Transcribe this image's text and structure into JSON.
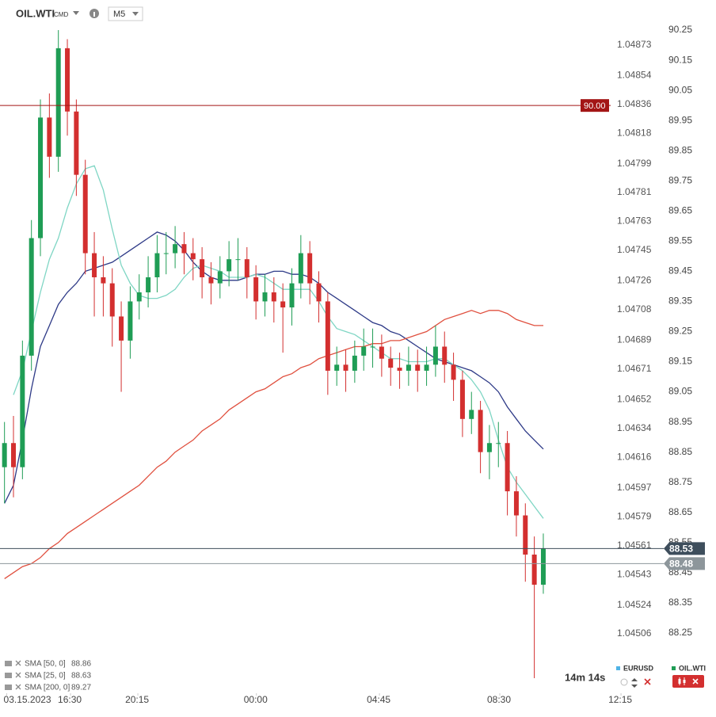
{
  "toolbar": {
    "symbol": "OIL.WTI",
    "asset_class": "CMD",
    "timeframe": "M5"
  },
  "chart_data": {
    "type": "candlestick",
    "up_color": "#1f9d55",
    "down_color": "#d32f2f",
    "open": [
      88.8,
      88.88,
      88.8,
      89.17,
      89.56,
      89.96,
      89.83,
      90.19,
      89.98,
      89.77,
      89.51,
      89.43,
      89.41,
      89.3,
      89.22,
      89.35,
      89.38,
      89.43,
      89.51,
      89.51,
      89.54,
      89.51,
      89.49,
      89.43,
      89.41,
      89.45,
      89.49,
      89.49,
      89.43,
      89.35,
      89.38,
      89.35,
      89.33,
      89.41,
      89.51,
      89.41,
      89.35,
      89.12,
      89.14,
      89.12,
      89.17,
      89.2,
      89.2,
      89.16,
      89.13,
      89.12,
      89.14,
      89.12,
      89.14,
      89.2,
      89.14,
      89.09,
      88.96,
      88.99,
      88.85,
      88.88,
      88.88,
      88.72,
      88.64,
      88.51,
      88.41
    ],
    "high": [
      88.95,
      88.97,
      89.22,
      89.62,
      90.02,
      90.04,
      90.25,
      90.22,
      90.02,
      89.82,
      89.58,
      89.5,
      89.46,
      89.35,
      89.4,
      89.44,
      89.5,
      89.57,
      89.58,
      89.6,
      89.58,
      89.56,
      89.53,
      89.48,
      89.5,
      89.55,
      89.56,
      89.53,
      89.47,
      89.44,
      89.43,
      89.41,
      89.46,
      89.57,
      89.55,
      89.45,
      89.38,
      89.2,
      89.19,
      89.22,
      89.26,
      89.26,
      89.24,
      89.2,
      89.18,
      89.2,
      89.19,
      89.2,
      89.27,
      89.25,
      89.18,
      89.12,
      89.05,
      89.02,
      88.94,
      88.95,
      88.92,
      88.77,
      88.68,
      88.57,
      88.58
    ],
    "low": [
      88.68,
      88.7,
      88.76,
      89.12,
      89.5,
      89.76,
      89.78,
      89.9,
      89.7,
      89.44,
      89.3,
      89.3,
      89.2,
      89.05,
      89.16,
      89.29,
      89.33,
      89.38,
      89.44,
      89.46,
      89.44,
      89.42,
      89.36,
      89.34,
      89.36,
      89.4,
      89.42,
      89.36,
      89.29,
      89.3,
      89.28,
      89.18,
      89.27,
      89.36,
      89.34,
      89.28,
      89.04,
      89.07,
      89.05,
      89.08,
      89.12,
      89.13,
      89.1,
      89.07,
      89.06,
      89.07,
      89.05,
      89.07,
      89.1,
      89.08,
      89.02,
      88.9,
      88.91,
      88.78,
      88.76,
      88.8,
      88.64,
      88.57,
      88.42,
      88.1,
      88.38
    ],
    "close": [
      88.88,
      88.8,
      89.17,
      89.56,
      89.96,
      89.83,
      90.19,
      89.98,
      89.77,
      89.51,
      89.43,
      89.41,
      89.3,
      89.22,
      89.35,
      89.38,
      89.43,
      89.51,
      89.51,
      89.54,
      89.51,
      89.49,
      89.43,
      89.41,
      89.45,
      89.49,
      89.49,
      89.43,
      89.35,
      89.38,
      89.35,
      89.33,
      89.41,
      89.51,
      89.41,
      89.35,
      89.12,
      89.14,
      89.12,
      89.17,
      89.2,
      89.2,
      89.16,
      89.13,
      89.12,
      89.14,
      89.12,
      89.14,
      89.2,
      89.14,
      89.09,
      88.96,
      88.99,
      88.85,
      88.88,
      88.88,
      88.72,
      88.64,
      88.51,
      88.41,
      88.53
    ],
    "series": [
      {
        "name": "SMA [50, 0]",
        "color": "#2e3a87",
        "values": [
          88.68,
          88.74,
          88.89,
          89.06,
          89.2,
          89.27,
          89.34,
          89.38,
          89.41,
          89.45,
          89.46,
          89.47,
          89.48,
          89.5,
          89.52,
          89.54,
          89.56,
          89.58,
          89.57,
          89.55,
          89.52,
          89.48,
          89.45,
          89.43,
          89.42,
          89.42,
          89.42,
          89.43,
          89.44,
          89.44,
          89.45,
          89.45,
          89.44,
          89.44,
          89.43,
          89.41,
          89.38,
          89.36,
          89.34,
          89.32,
          89.3,
          89.28,
          89.27,
          89.25,
          89.24,
          89.22,
          89.2,
          89.18,
          89.16,
          89.15,
          89.14,
          89.13,
          89.12,
          89.1,
          89.08,
          89.05,
          89.0,
          88.96,
          88.92,
          88.89,
          88.86
        ]
      },
      {
        "name": "SMA [25, 0]",
        "color": "#7fd6c4",
        "values": [
          null,
          89.04,
          89.12,
          89.25,
          89.38,
          89.49,
          89.56,
          89.66,
          89.74,
          89.79,
          89.8,
          89.72,
          89.59,
          89.47,
          89.41,
          89.37,
          89.36,
          89.36,
          89.37,
          89.39,
          89.43,
          89.46,
          89.47,
          89.46,
          89.45,
          89.43,
          89.43,
          89.43,
          89.44,
          89.43,
          89.41,
          89.39,
          89.39,
          89.39,
          89.39,
          89.35,
          89.3,
          89.26,
          89.25,
          89.24,
          89.22,
          89.2,
          89.18,
          89.16,
          89.16,
          89.15,
          89.15,
          89.15,
          89.16,
          89.16,
          89.14,
          89.12,
          89.09,
          89.05,
          88.99,
          88.89,
          88.8,
          88.75,
          88.71,
          88.67,
          88.63
        ]
      },
      {
        "name": "SMA [200, 0]",
        "color": "#e0503f",
        "values": [
          88.43,
          88.45,
          88.47,
          88.48,
          88.5,
          88.53,
          88.55,
          88.58,
          88.6,
          88.62,
          88.64,
          88.66,
          88.68,
          88.7,
          88.72,
          88.74,
          88.77,
          88.8,
          88.82,
          88.85,
          88.87,
          88.89,
          88.92,
          88.94,
          88.96,
          88.99,
          89.01,
          89.03,
          89.05,
          89.06,
          89.08,
          89.1,
          89.11,
          89.13,
          89.14,
          89.16,
          89.17,
          89.18,
          89.19,
          89.2,
          89.2,
          89.21,
          89.21,
          89.22,
          89.22,
          89.23,
          89.24,
          89.25,
          89.27,
          89.29,
          89.3,
          89.31,
          89.32,
          89.31,
          89.32,
          89.32,
          89.31,
          89.29,
          89.28,
          89.27,
          89.27
        ]
      }
    ],
    "xlim": [
      -0.5,
      67.5
    ],
    "xticks": [
      {
        "value": -0.1,
        "label": "03.15.2023"
      },
      {
        "value": 7,
        "label": "16:30"
      },
      {
        "value": 14.5,
        "label": "20:15"
      },
      {
        "value": 27.7,
        "label": "00:00"
      },
      {
        "value": 41.4,
        "label": "04:45"
      },
      {
        "value": 54.8,
        "label": "08:30"
      },
      {
        "value": 68.3,
        "label": "12:15"
      }
    ],
    "ylim": [
      88.05,
      90.35
    ],
    "yticks": [
      88.25,
      88.35,
      88.45,
      88.55,
      88.65,
      88.75,
      88.85,
      88.95,
      89.05,
      89.15,
      89.25,
      89.35,
      89.45,
      89.55,
      89.65,
      89.75,
      89.85,
      89.95,
      90.05,
      90.15,
      90.25
    ],
    "y2lim": [
      1.04469,
      1.04901
    ],
    "y2ticks": [
      1.04506,
      1.04524,
      1.04543,
      1.04561,
      1.04579,
      1.04597,
      1.04616,
      1.04634,
      1.04652,
      1.04671,
      1.04689,
      1.04708,
      1.04726,
      1.04745,
      1.04763,
      1.04781,
      1.04799,
      1.04818,
      1.04836,
      1.04854,
      1.04873
    ],
    "price_lines": [
      {
        "value": 90,
        "label": "90.00",
        "color": "#a31515"
      },
      {
        "value": 88.53,
        "color": "#3e4e5c"
      },
      {
        "value": 88.48,
        "color": "#8d969b"
      }
    ]
  },
  "footer": {
    "countdown": "14m 14s",
    "symbols": [
      {
        "name": "EURUSD",
        "color": "#4fb3e6"
      },
      {
        "name": "OIL.WTI",
        "color": "#1f9d55"
      }
    ]
  }
}
